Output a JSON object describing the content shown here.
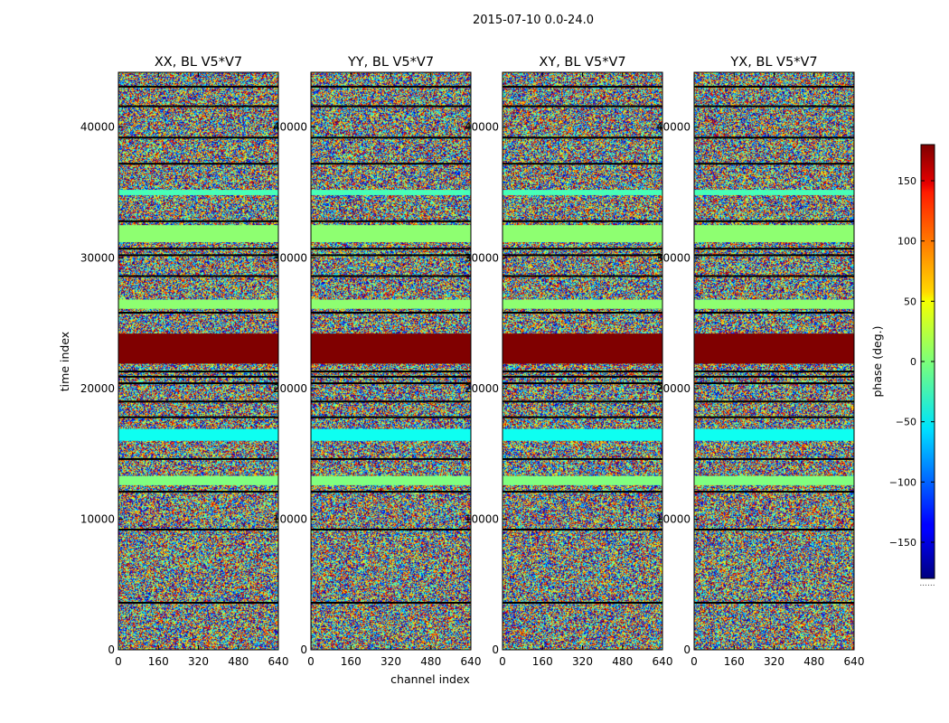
{
  "figure": {
    "suptitle": "2015-07-10 0.0-24.0"
  },
  "chart_data": {
    "type": "heatmap",
    "title": "2015-07-10 0.0-24.0",
    "xlabel": "channel index",
    "ylabel": "time index",
    "xlim": [
      0,
      640
    ],
    "ylim": [
      0,
      44200
    ],
    "xticks": [
      "0",
      "160",
      "320",
      "480",
      "640"
    ],
    "yticks": [
      "0",
      "10000",
      "20000",
      "30000",
      "40000"
    ],
    "colormap": "jet",
    "panels": [
      {
        "name": "XX, BL V5*V7"
      },
      {
        "name": "YY, BL V5*V7"
      },
      {
        "name": "XY, BL V5*V7"
      },
      {
        "name": "YX, BL V5*V7"
      }
    ],
    "saturated_band": {
      "time_start": 21900,
      "time_end": 24200,
      "phase": 180
    },
    "uniform_bands": [
      {
        "time_start": 12600,
        "time_end": 13300,
        "phase": 0
      },
      {
        "time_start": 16000,
        "time_end": 16900,
        "phase": -40
      },
      {
        "time_start": 26100,
        "time_end": 26800,
        "phase": 5
      },
      {
        "time_start": 31200,
        "time_end": 32500,
        "phase": 5
      },
      {
        "time_start": 34800,
        "time_end": 35200,
        "phase": -20
      }
    ],
    "dark_rows": [
      3600,
      9200,
      12100,
      14600,
      17800,
      19000,
      20400,
      20900,
      21300,
      25800,
      28600,
      30200,
      30700,
      32800,
      37200,
      39200,
      41600,
      43100
    ],
    "colorbar": {
      "label": "phase (deg.)",
      "range": [
        -180,
        180
      ],
      "ticks": [
        "150",
        "100",
        "50",
        "0",
        "−50",
        "−100",
        "−150"
      ],
      "tick_values": [
        150,
        100,
        50,
        0,
        -50,
        -100,
        -150
      ]
    }
  }
}
